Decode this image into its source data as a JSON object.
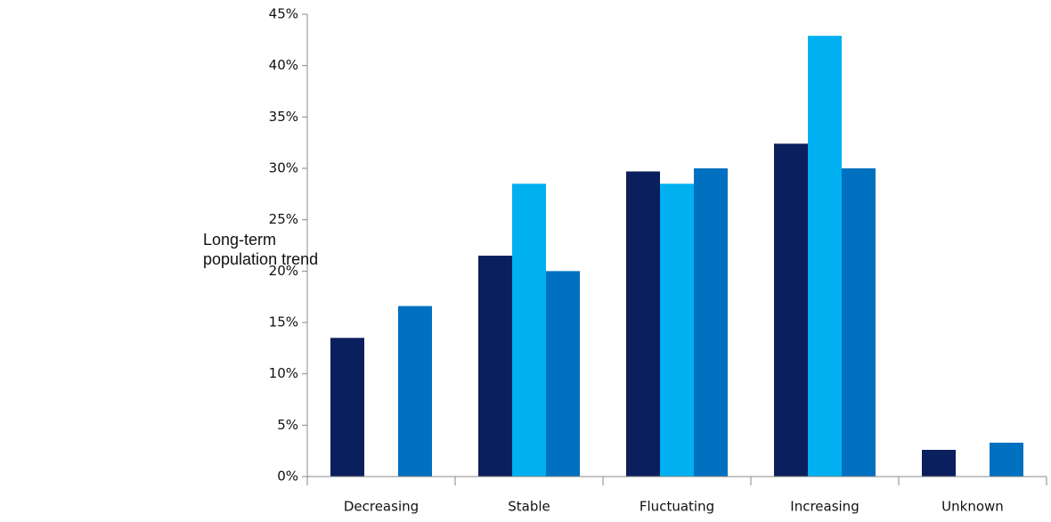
{
  "chart_data": {
    "type": "bar",
    "y_label": "Long-term population trend",
    "categories": [
      "Decreasing",
      "Stable",
      "Fluctuating",
      "Increasing",
      "Unknown"
    ],
    "series": [
      {
        "color": "#0b1f5e",
        "values": [
          13.5,
          21.5,
          29.7,
          32.4,
          2.6
        ]
      },
      {
        "color": "#00b0f0",
        "values": [
          0,
          28.5,
          28.5,
          42.9,
          0
        ]
      },
      {
        "color": "#0070c0",
        "values": [
          16.6,
          20.0,
          30.0,
          30.0,
          3.3
        ]
      }
    ],
    "ylim": [
      0,
      45
    ],
    "yticks": [
      {
        "value": 0,
        "label": "0%"
      },
      {
        "value": 5,
        "label": "5%"
      },
      {
        "value": 10,
        "label": "10%"
      },
      {
        "value": 15,
        "label": "15%"
      },
      {
        "value": 20,
        "label": "20%"
      },
      {
        "value": 25,
        "label": "25%"
      },
      {
        "value": 30,
        "label": "30%"
      },
      {
        "value": 35,
        "label": "35%"
      },
      {
        "value": 40,
        "label": "40%"
      },
      {
        "value": 45,
        "label": "45%"
      }
    ],
    "grid": false
  }
}
